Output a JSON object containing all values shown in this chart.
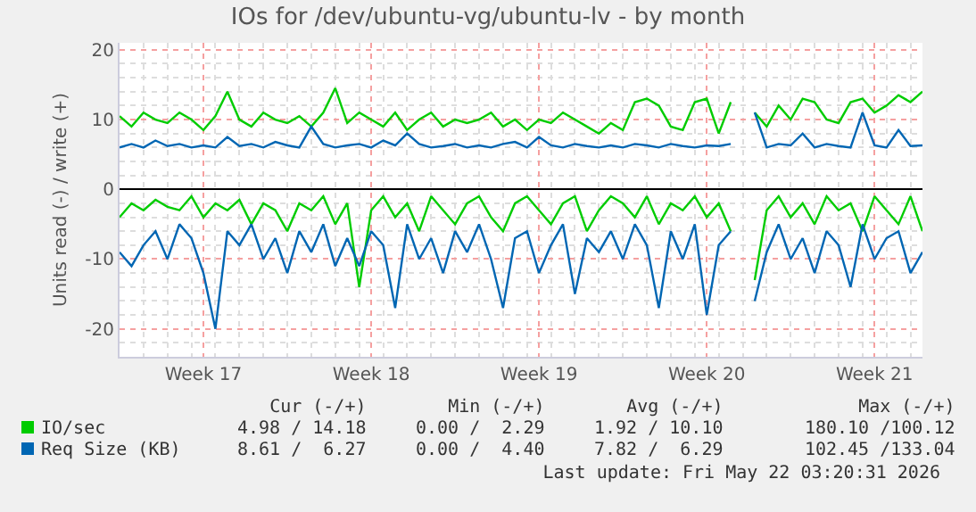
{
  "chart_data": {
    "type": "line",
    "title": "IOs for /dev/ubuntu-vg/ubuntu-lv - by month",
    "ylabel": "Units read (-) / write (+)",
    "categories": [
      null,
      null,
      null,
      null,
      null,
      null,
      null,
      "Week 17",
      null,
      null,
      null,
      null,
      null,
      null,
      null,
      null,
      null,
      null,
      null,
      null,
      null,
      "Week 18",
      null,
      null,
      null,
      null,
      null,
      null,
      null,
      null,
      null,
      null,
      null,
      null,
      null,
      "Week 19",
      null,
      null,
      null,
      null,
      null,
      null,
      null,
      null,
      null,
      null,
      null,
      null,
      null,
      "Week 20",
      null,
      null,
      null,
      null,
      null,
      null,
      null,
      null,
      null,
      null,
      null,
      null,
      null,
      "Week 21",
      null,
      null,
      null,
      null
    ],
    "series": [
      {
        "name": "IO/sec",
        "color": "#00cc00",
        "values": [
          10.5,
          9,
          11,
          10,
          9.5,
          11,
          10,
          8.5,
          10.5,
          14,
          10,
          9,
          11,
          10,
          9.5,
          10.5,
          9,
          11,
          14.5,
          9.5,
          11,
          10,
          9,
          11,
          8.5,
          10,
          11,
          9,
          10,
          9.5,
          10,
          11,
          9,
          10,
          8.5,
          10,
          9.5,
          11,
          10,
          9,
          8,
          9.5,
          8.5,
          12.5,
          13,
          12,
          9,
          8.5,
          12.5,
          13,
          8,
          12.5,
          null,
          11,
          9,
          12,
          10,
          13,
          12.5,
          10,
          9.5,
          12.5,
          13,
          11,
          12,
          13.5,
          12.5,
          14
        ]
      },
      {
        "color": "#00cc00",
        "values": [
          -4,
          -2,
          -3,
          -1.5,
          -2.5,
          -3,
          -1,
          -4,
          -2,
          -3,
          -1.5,
          -5,
          -2,
          -3,
          -6,
          -2,
          -3,
          -1,
          -5,
          -2,
          -14,
          -3,
          -1,
          -4,
          -2,
          -6,
          -1,
          -3,
          -5,
          -2,
          -1,
          -4,
          -6,
          -2,
          -1,
          -3,
          -5,
          -2,
          -1,
          -6,
          -3,
          -1,
          -2,
          -4,
          -1,
          -5,
          -2,
          -3,
          -1,
          -4,
          -2,
          -6,
          null,
          -13,
          -3,
          -1,
          -4,
          -2,
          -5,
          -1,
          -3,
          -2,
          -6,
          -1,
          -3,
          -5,
          -1,
          -6
        ]
      },
      {
        "name": "Req Size (KB)",
        "color": "#0066b3",
        "values": [
          6,
          6.5,
          6,
          7,
          6.2,
          6.5,
          6,
          6.3,
          6,
          7.5,
          6.2,
          6.5,
          6,
          6.8,
          6.3,
          6,
          9,
          6.5,
          6,
          6.3,
          6.5,
          6,
          7,
          6.3,
          8,
          6.5,
          6,
          6.2,
          6.5,
          6,
          6.3,
          6,
          6.5,
          6.8,
          6,
          7.5,
          6.3,
          6,
          6.5,
          6.2,
          6,
          6.3,
          6,
          6.5,
          6.3,
          6,
          6.5,
          6.2,
          6,
          6.3,
          6.2,
          6.5,
          null,
          11,
          6,
          6.5,
          6.3,
          8,
          6,
          6.5,
          6.2,
          6,
          11,
          6.3,
          6,
          8.5,
          6.2,
          6.3
        ]
      },
      {
        "color": "#0066b3",
        "values": [
          -9,
          -11,
          -8,
          -6,
          -10,
          -5,
          -7,
          -12,
          -20,
          -6,
          -8,
          -5,
          -10,
          -7,
          -12,
          -6,
          -9,
          -5,
          -11,
          -7,
          -11,
          -6,
          -8,
          -17,
          -5,
          -10,
          -7,
          -12,
          -6,
          -9,
          -5,
          -10,
          -17,
          -7,
          -6,
          -12,
          -8,
          -5,
          -15,
          -7,
          -9,
          -6,
          -10,
          -5,
          -8,
          -17,
          -6,
          -10,
          -5,
          -18,
          -8,
          -6,
          null,
          -16,
          -9,
          -5,
          -10,
          -7,
          -12,
          -6,
          -8,
          -14,
          -5,
          -10,
          -7,
          -6,
          -12,
          -9
        ]
      }
    ],
    "ylim": [
      -24,
      21
    ],
    "yticks": [
      -20,
      -10,
      0,
      10,
      20
    ],
    "grid": true,
    "legend": "bottom",
    "marker": "none",
    "line_style": "solid",
    "annotations": [
      "Cur (-/+)",
      "Min (-/+)",
      "Avg (-/+)",
      "Max (-/+)",
      "4.98 / 14.18",
      "0.00 /  2.29",
      "1.92 / 10.10",
      "180.10 /100.12",
      "8.61 /  6.27",
      "0.00 /  4.40",
      "7.82 /  6.29",
      "102.45 /133.04",
      "Last update: Fri May 22 03:20:31 2026"
    ]
  }
}
